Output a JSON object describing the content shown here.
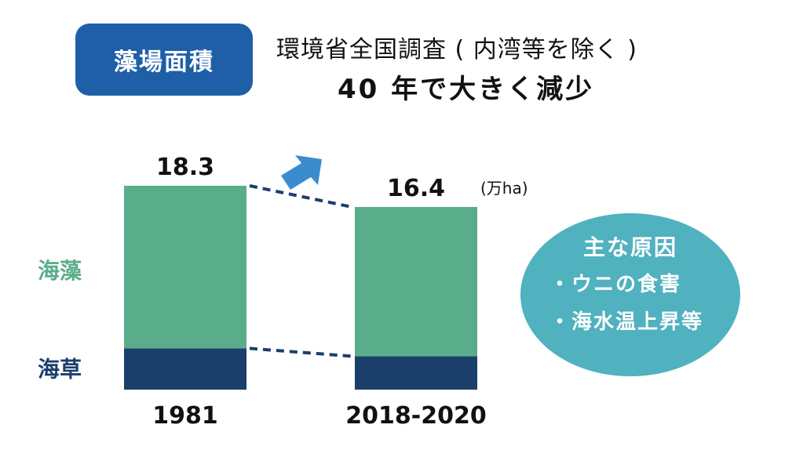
{
  "badge": {
    "label": "藻場面積"
  },
  "subtitle": "環境省全国調査 ( 内湾等を除く )",
  "headline": "40 年で大きく減少",
  "causes": {
    "title": "主な原因",
    "items": [
      "・ウニの食害",
      "・海水温上昇等"
    ]
  },
  "colors": {
    "seaweed": "#5aad8a",
    "seagrass": "#1b3e6b",
    "badge": "#1f5fa8",
    "causes": "#50b1bf",
    "arrow": "#3b8ccf"
  },
  "chart_data": {
    "type": "bar",
    "stacked": true,
    "categories": [
      "1981",
      "2018-2020"
    ],
    "totals": [
      "18.3",
      "16.4"
    ],
    "unit": "(万ha)",
    "series": [
      {
        "name": "海草",
        "values": [
          3.7,
          3.0
        ]
      },
      {
        "name": "海藻",
        "values": [
          14.6,
          13.4
        ]
      }
    ]
  }
}
